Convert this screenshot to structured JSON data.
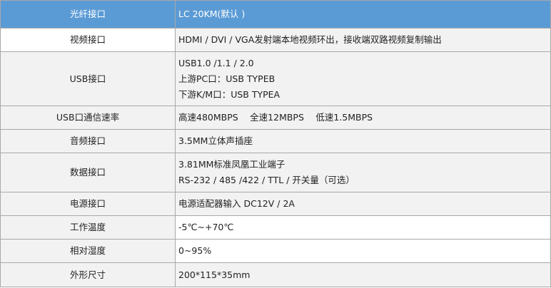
{
  "rows": [
    {
      "label": "光纤接口",
      "value": [
        "LC 20KM(默认 )"
      ]
    },
    {
      "label": "视频接口",
      "value": [
        "HDMI / DVI / VGA发射端本地视频环出，接收端双路视频复制输出"
      ]
    },
    {
      "label": "USB接口",
      "value": [
        "USB1.0 /1.1 / 2.0",
        "上游PC口：USB TYPEB",
        "下游K/M口：USB TYPEA"
      ]
    },
    {
      "label": "USB口通信速率",
      "value": [
        "高速480MBPS　 全速12MBPS　 低速1.5MBPS"
      ]
    },
    {
      "label": "音频接口",
      "value": [
        "3.5MM立体声插座"
      ]
    },
    {
      "label": "数据接口",
      "value": [
        "3.81MM标准凤凰工业端子",
        "RS-232 / 485 /422 / TTL / 开关量（可选）"
      ]
    },
    {
      "label": "电源接口",
      "value": [
        "电源适配器输入 DC12V / 2A"
      ]
    },
    {
      "label": "工作温度",
      "value": [
        "-5℃~+70℃"
      ]
    },
    {
      "label": "相对湿度",
      "value": [
        "0~95%"
      ]
    },
    {
      "label": "外形尺寸",
      "value": [
        "200*115*35mm"
      ]
    }
  ],
  "colors": {
    "header": "#5b9bd5",
    "cell": "#f2f2f2",
    "border": "#a8a8a8"
  }
}
